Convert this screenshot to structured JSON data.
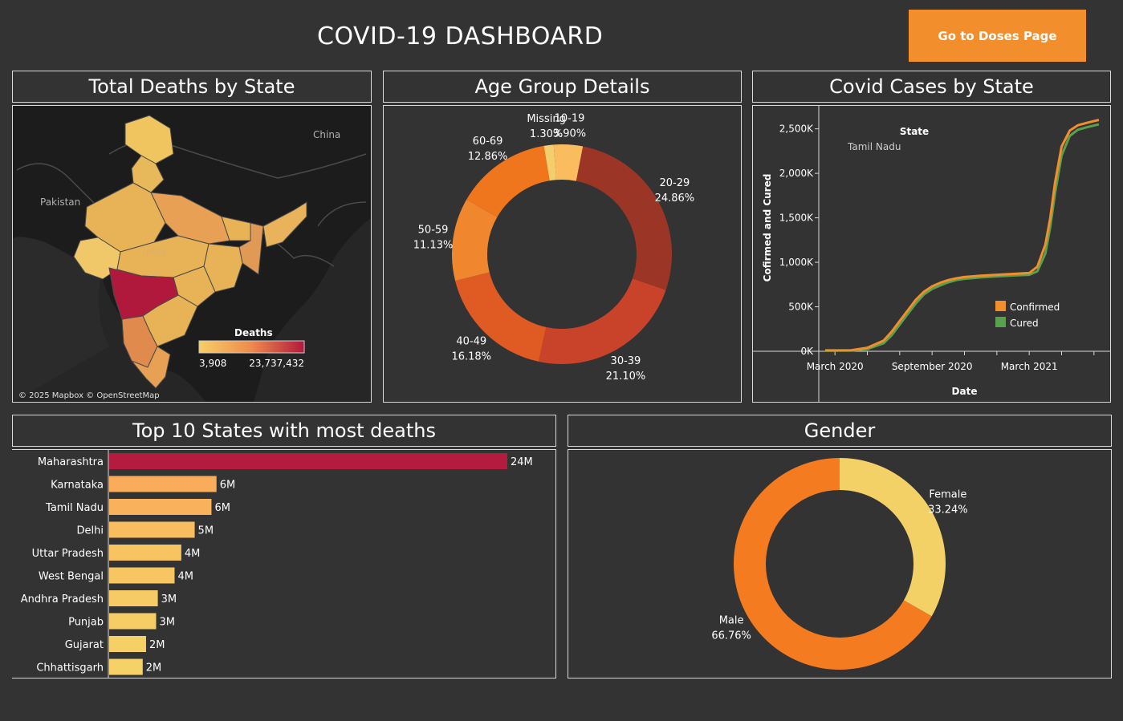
{
  "header": {
    "title": "COVID-19 DASHBOARD",
    "doses_button": "Go to Doses Page"
  },
  "map_panel": {
    "title": "Total Deaths by State",
    "country_labels": [
      "Pakistan",
      "China",
      "India"
    ],
    "legend_title": "Deaths",
    "legend_min": "3,908",
    "legend_max": "23,737,432",
    "attribution": "© 2025 Mapbox © OpenStreetMap",
    "colors": {
      "low": "#f6cf66",
      "mid": "#ee8a4e",
      "high": "#b0193c",
      "land": "#1c1c1c",
      "sea": "#262626"
    }
  },
  "age_panel": {
    "title": "Age Group Details"
  },
  "cases_panel": {
    "title": "Covid Cases by State",
    "legend_title": "State",
    "state": "Tamil Nadu",
    "series": [
      "Confirmed",
      "Cured"
    ]
  },
  "top10_panel": {
    "title": "Top 10 States with most deaths"
  },
  "gender_panel": {
    "title": "Gender"
  },
  "chart_data": [
    {
      "type": "pie",
      "name": "Age Group Details",
      "categories": [
        "10-19",
        "20-29",
        "30-39",
        "40-49",
        "50-59",
        "60-69",
        "Missing"
      ],
      "values": [
        3.9,
        24.86,
        21.1,
        16.18,
        11.13,
        12.86,
        1.3
      ],
      "labels": [
        "3.90%",
        "24.86%",
        "21.10%",
        "16.18%",
        "11.13%",
        "12.86%",
        "1.30%"
      ],
      "colors": [
        "#f9bc5f",
        "#9b3627",
        "#c9432b",
        "#e05a24",
        "#f0872f",
        "#f0761e",
        "#f6cd6c"
      ],
      "start_offset_pct": 1.2,
      "donut": true
    },
    {
      "type": "line",
      "name": "Covid Cases by State",
      "xlabel": "Date",
      "ylabel": "Cofirmed and Cured",
      "x_ticks": [
        "March 2020",
        "September 2020",
        "March 2021"
      ],
      "x_tick_months": [
        0,
        6,
        12
      ],
      "xlim_months": [
        -1,
        17
      ],
      "y_ticks": [
        "0K",
        "500K",
        "1,000K",
        "1,500K",
        "2,000K",
        "2,500K"
      ],
      "y_tick_values": [
        0,
        500,
        1000,
        1500,
        2000,
        2500
      ],
      "ylim": [
        0,
        2650
      ],
      "series": [
        {
          "name": "Confirmed",
          "color": "#f28e2b",
          "months": [
            -0.6,
            1,
            2,
            3,
            3.5,
            4,
            4.5,
            5,
            5.5,
            6,
            6.5,
            7,
            7.5,
            8,
            9,
            10,
            11,
            12,
            12.5,
            13,
            13.3,
            13.6,
            14,
            14.5,
            15,
            15.6,
            16.3
          ],
          "values": [
            10,
            12,
            40,
            120,
            220,
            340,
            460,
            580,
            670,
            730,
            770,
            800,
            820,
            835,
            850,
            860,
            870,
            880,
            950,
            1200,
            1500,
            1900,
            2300,
            2480,
            2540,
            2570,
            2600
          ]
        },
        {
          "name": "Cured",
          "color": "#59a14f",
          "months": [
            -0.6,
            1,
            2,
            3,
            3.5,
            4,
            4.5,
            5,
            5.5,
            6,
            6.5,
            7,
            7.5,
            8,
            9,
            10,
            11,
            12,
            12.5,
            13,
            13.3,
            13.6,
            14,
            14.5,
            15,
            15.6,
            16.3
          ],
          "values": [
            5,
            8,
            25,
            90,
            180,
            300,
            420,
            540,
            640,
            700,
            740,
            775,
            800,
            815,
            830,
            842,
            852,
            860,
            900,
            1100,
            1400,
            1780,
            2200,
            2420,
            2490,
            2520,
            2550
          ]
        }
      ],
      "legend_position": "bottom-right"
    },
    {
      "type": "bar",
      "name": "Top 10 States with most deaths",
      "orientation": "horizontal",
      "categories": [
        "Maharashtra",
        "Karnataka",
        "Tamil Nadu",
        "Delhi",
        "Uttar Pradesh",
        "West Bengal",
        "Andhra Pradesh",
        "Punjab",
        "Gujarat",
        "Chhattisgarh"
      ],
      "values": [
        23.74,
        6.4,
        6.1,
        5.1,
        4.3,
        3.9,
        2.9,
        2.8,
        2.2,
        2.0
      ],
      "labels": [
        "24M",
        "6M",
        "6M",
        "5M",
        "4M",
        "4M",
        "3M",
        "3M",
        "2M",
        "2M"
      ],
      "colors": [
        "#b31b3f",
        "#f9ad5a",
        "#f9b15c",
        "#f8bd5f",
        "#f8c462",
        "#f7c663",
        "#f6cb65",
        "#f6cc65",
        "#f5d067",
        "#f5d168"
      ]
    },
    {
      "type": "pie",
      "name": "Gender",
      "categories": [
        "Female",
        "Male"
      ],
      "values": [
        33.24,
        66.76
      ],
      "labels": [
        "33.24%",
        "66.76%"
      ],
      "colors": [
        "#f4d166",
        "#f47b20"
      ],
      "start_offset_pct": 0,
      "donut": true
    }
  ]
}
